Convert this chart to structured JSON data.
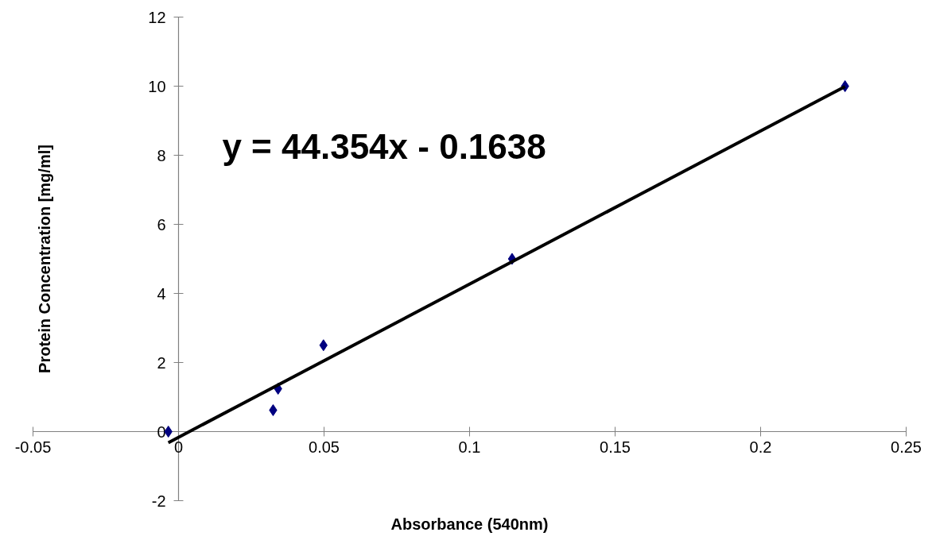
{
  "chart_data": {
    "type": "scatter",
    "xlabel": "Absorbance (540nm)",
    "ylabel": "Protein Concentration [mg/ml]",
    "annotations": [
      "y = 44.354x - 0.1638"
    ],
    "series": [
      {
        "type": "scatter",
        "color": "#000080",
        "marker": "diamond",
        "x": [
          -0.0035,
          0.0325,
          0.0342,
          0.0498,
          0.1146,
          0.229
        ],
        "values": [
          0,
          0.62,
          1.24,
          2.5,
          5,
          10
        ]
      },
      {
        "type": "line",
        "color": "#000000",
        "marker": "none",
        "line_style": "solid",
        "x": [
          -0.0035,
          0.229
        ],
        "values": [
          -0.32,
          9.99
        ]
      }
    ],
    "xlim": [
      -0.05,
      0.25
    ],
    "xticks": [
      -0.05,
      0,
      0.05,
      0.1,
      0.15,
      0.2,
      0.25
    ],
    "ylim": [
      -2,
      12
    ],
    "yticks": [
      -2,
      0,
      2,
      4,
      6,
      8,
      10,
      12
    ],
    "grid": false
  }
}
